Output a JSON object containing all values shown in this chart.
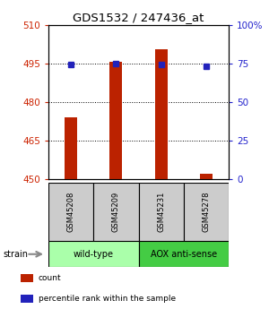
{
  "title": "GDS1532 / 247436_at",
  "samples": [
    "GSM45208",
    "GSM45209",
    "GSM45231",
    "GSM45278"
  ],
  "count_values": [
    474,
    495.5,
    500.5,
    452
  ],
  "percentile_values": [
    74,
    75,
    74.5,
    73
  ],
  "ylim_left": [
    450,
    510
  ],
  "ylim_right": [
    0,
    100
  ],
  "yticks_left": [
    450,
    465,
    480,
    495,
    510
  ],
  "yticks_right": [
    0,
    25,
    50,
    75,
    100
  ],
  "yticklabels_right": [
    "0",
    "25",
    "50",
    "75",
    "100%"
  ],
  "bar_color": "#bb2200",
  "dot_color": "#2222bb",
  "groups": [
    {
      "label": "wild-type",
      "color": "#aaffaa",
      "samples": [
        0,
        1
      ]
    },
    {
      "label": "AOX anti-sense",
      "color": "#44cc44",
      "samples": [
        2,
        3
      ]
    }
  ],
  "strain_label": "strain",
  "legend_items": [
    {
      "color": "#bb2200",
      "label": "count"
    },
    {
      "color": "#2222bb",
      "label": "percentile rank within the sample"
    }
  ],
  "left_tick_color": "#cc2200",
  "right_tick_color": "#2222cc",
  "sample_box_color": "#cccccc",
  "bar_width": 0.28
}
